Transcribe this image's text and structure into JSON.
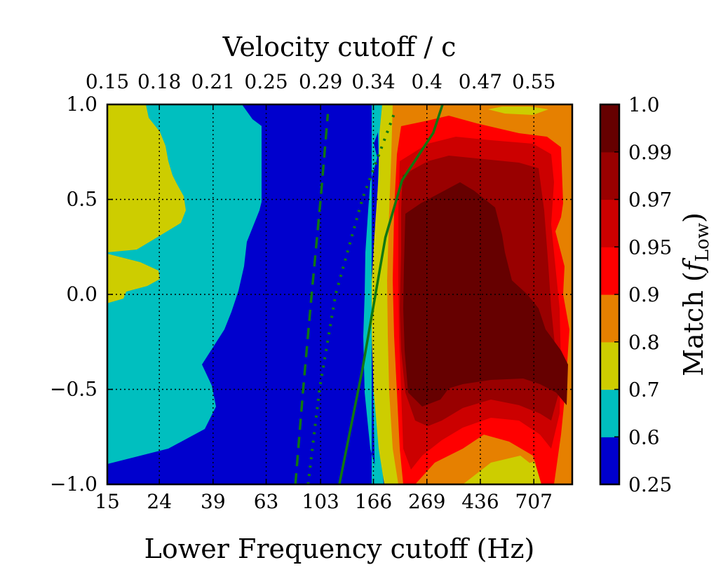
{
  "chart_data": {
    "type": "heatmap",
    "subtype": "filled-contour",
    "xlabel": "Lower Frequency cutoff (Hz)",
    "ylabel_left": "",
    "top_axis_label": "Velocity cutoff / c",
    "colorbar_label": "Match (f_Low)",
    "colorbar_label_main": "Match (",
    "colorbar_label_f": "f",
    "colorbar_label_sub": "Low",
    "colorbar_label_close": ")",
    "x_scale": "log",
    "x_range": [
      15,
      1000
    ],
    "y_range": [
      -1.0,
      1.0
    ],
    "x_ticks": [
      {
        "value": 15,
        "label": "15"
      },
      {
        "value": 24,
        "label": "24"
      },
      {
        "value": 39,
        "label": "39"
      },
      {
        "value": 63,
        "label": "63"
      },
      {
        "value": 103,
        "label": "103"
      },
      {
        "value": 166,
        "label": "166"
      },
      {
        "value": 269,
        "label": "269"
      },
      {
        "value": 436,
        "label": "436"
      },
      {
        "value": 707,
        "label": "707"
      }
    ],
    "y_ticks": [
      {
        "value": 1.0,
        "label": "1.0"
      },
      {
        "value": 0.5,
        "label": "0.5"
      },
      {
        "value": 0.0,
        "label": "0.0"
      },
      {
        "value": -0.5,
        "label": "−0.5"
      },
      {
        "value": -1.0,
        "label": "−1.0"
      }
    ],
    "top_ticks": [
      {
        "freq": 15,
        "label": "0.15"
      },
      {
        "freq": 24,
        "label": "0.18"
      },
      {
        "freq": 39,
        "label": "0.21"
      },
      {
        "freq": 63,
        "label": "0.25"
      },
      {
        "freq": 103,
        "label": "0.29"
      },
      {
        "freq": 166,
        "label": "0.34"
      },
      {
        "freq": 269,
        "label": "0.4"
      },
      {
        "freq": 436,
        "label": "0.47"
      },
      {
        "freq": 707,
        "label": "0.55"
      }
    ],
    "levels": [
      {
        "from": 0.25,
        "to": 0.6,
        "color": "#0000cd"
      },
      {
        "from": 0.6,
        "to": 0.7,
        "color": "#00bfbf"
      },
      {
        "from": 0.7,
        "to": 0.8,
        "color": "#cdcd00"
      },
      {
        "from": 0.8,
        "to": 0.9,
        "color": "#e68000"
      },
      {
        "from": 0.9,
        "to": 0.95,
        "color": "#ff0000"
      },
      {
        "from": 0.95,
        "to": 0.97,
        "color": "#cc0000"
      },
      {
        "from": 0.97,
        "to": 0.99,
        "color": "#990000"
      },
      {
        "from": 0.99,
        "to": 1.0,
        "color": "#660000"
      }
    ],
    "colorbar_ticks": [
      "0.25",
      "0.6",
      "0.7",
      "0.8",
      "0.9",
      "0.95",
      "0.97",
      "0.99",
      "1.0"
    ],
    "boundaries": [
      {
        "name": "cyan-yellow-left",
        "points": [
          [
            22,
            1.0
          ],
          [
            20,
            0.9
          ],
          [
            23,
            0.75
          ],
          [
            22.5,
            0.65
          ],
          [
            23.5,
            0.55
          ],
          [
            21,
            0.45
          ],
          [
            18,
            0.32
          ],
          [
            15,
            0.25
          ]
        ]
      },
      {
        "name": "yellow-island-lower",
        "points": [
          [
            15,
            0.22
          ],
          [
            19,
            0.17
          ],
          [
            20,
            0.12
          ],
          [
            19,
            0.07
          ],
          [
            17,
            0.02
          ],
          [
            16,
            0.0
          ],
          [
            15,
            -0.03
          ]
        ]
      },
      {
        "name": "blue-cyan",
        "points": [
          [
            52,
            1.0
          ],
          [
            56,
            0.95
          ],
          [
            59,
            0.82
          ],
          [
            58,
            0.72
          ],
          [
            54,
            0.6
          ],
          [
            55,
            0.5
          ],
          [
            50,
            0.4
          ],
          [
            49,
            0.3
          ],
          [
            48,
            0.2
          ],
          [
            45,
            0.1
          ],
          [
            44,
            0.0
          ],
          [
            42,
            -0.1
          ],
          [
            37,
            -0.3
          ],
          [
            38,
            -0.4
          ],
          [
            40,
            -0.5
          ],
          [
            38,
            -0.65
          ],
          [
            30,
            -0.8
          ],
          [
            15,
            -0.9
          ]
        ]
      },
      {
        "name": "cyan-right",
        "points": [
          [
            165,
            1.0
          ],
          [
            162,
            0.9
          ],
          [
            158,
            0.82
          ],
          [
            164,
            0.75
          ],
          [
            162,
            0.6
          ],
          [
            165,
            0.5
          ],
          [
            163,
            0.3
          ],
          [
            160,
            0.0
          ],
          [
            157,
            -0.3
          ],
          [
            158,
            -0.6
          ],
          [
            162,
            -0.9
          ],
          [
            167,
            -1.0
          ]
        ]
      },
      {
        "name": "yellow-right",
        "points": [
          [
            183,
            1.0
          ],
          [
            180,
            0.9
          ],
          [
            178,
            0.7
          ],
          [
            177,
            0.5
          ],
          [
            174,
            0.2
          ],
          [
            172,
            -0.2
          ],
          [
            172,
            -0.5
          ],
          [
            176,
            -0.8
          ],
          [
            182,
            -1.0
          ]
        ]
      },
      {
        "name": "orange-left",
        "points": [
          [
            196,
            1.0
          ],
          [
            193,
            0.85
          ],
          [
            190,
            0.6
          ],
          [
            187,
            0.2
          ],
          [
            186,
            -0.2
          ],
          [
            188,
            -0.6
          ],
          [
            192,
            -0.95
          ],
          [
            200,
            -1.0
          ]
        ]
      },
      {
        "name": "red-left",
        "points": [
          [
            215,
            0.95
          ],
          [
            210,
            0.8
          ],
          [
            205,
            0.6
          ],
          [
            203,
            0.3
          ],
          [
            202,
            0.0
          ],
          [
            203,
            -0.4
          ],
          [
            208,
            -0.7
          ],
          [
            215,
            -0.9
          ],
          [
            225,
            -1.0
          ]
        ]
      },
      {
        "name": "darkred-left",
        "points": [
          [
            250,
            0.82
          ],
          [
            240,
            0.6
          ],
          [
            233,
            0.3
          ],
          [
            230,
            0.0
          ],
          [
            232,
            -0.3
          ],
          [
            245,
            -0.6
          ],
          [
            270,
            -0.75
          ],
          [
            300,
            -0.65
          ]
        ]
      },
      {
        "name": "darkest-core",
        "points": [
          [
            330,
            0.62
          ],
          [
            450,
            0.55
          ],
          [
            560,
            0.2
          ],
          [
            750,
            -0.05
          ],
          [
            760,
            -0.45
          ],
          [
            500,
            -0.48
          ],
          [
            280,
            -0.45
          ],
          [
            260,
            -0.1
          ],
          [
            265,
            0.3
          ],
          [
            280,
            0.55
          ]
        ]
      }
    ],
    "lines": [
      {
        "name": "solid",
        "style": "solid",
        "points": [
          [
            122,
            -1.0
          ],
          [
            150,
            -0.4
          ],
          [
            185,
            0.3
          ],
          [
            215,
            0.6
          ],
          [
            285,
            0.85
          ],
          [
            310,
            1.0
          ]
        ]
      },
      {
        "name": "dashed",
        "style": "dashed",
        "points": [
          [
            82,
            -1.0
          ],
          [
            88,
            -0.5
          ],
          [
            95,
            0.0
          ],
          [
            103,
            0.5
          ],
          [
            110,
            0.95
          ]
        ]
      },
      {
        "name": "dotted",
        "style": "dotted",
        "points": [
          [
            92,
            -1.0
          ],
          [
            102,
            -0.5
          ],
          [
            118,
            0.0
          ],
          [
            150,
            0.5
          ],
          [
            200,
            0.95
          ]
        ]
      }
    ]
  }
}
